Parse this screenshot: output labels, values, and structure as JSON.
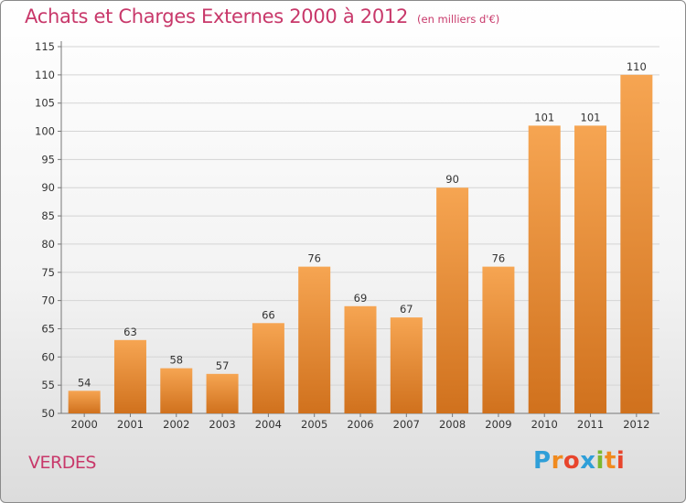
{
  "title": "Achats et Charges Externes 2000 à 2012",
  "subtitle": "(en milliers d'€)",
  "commune": "VERDES",
  "logo": {
    "letters": [
      "P",
      "r",
      "o",
      "x",
      "i",
      "t",
      "i"
    ],
    "colors": [
      "#2f9fd8",
      "#f08a1e",
      "#e8452c",
      "#2f9fd8",
      "#7cb82f",
      "#f08a1e",
      "#e8452c"
    ]
  },
  "colors": {
    "accent": "#c8386a",
    "bar_top": "#f6a552",
    "bar_bottom": "#d0711d"
  },
  "chart_data": {
    "type": "bar",
    "categories": [
      "2000",
      "2001",
      "2002",
      "2003",
      "2004",
      "2005",
      "2006",
      "2007",
      "2008",
      "2009",
      "2010",
      "2011",
      "2012"
    ],
    "values": [
      54,
      63,
      58,
      57,
      66,
      76,
      69,
      67,
      90,
      76,
      101,
      101,
      110
    ],
    "ylim": [
      50,
      115
    ],
    "yticks": [
      50,
      55,
      60,
      65,
      70,
      75,
      80,
      85,
      90,
      95,
      100,
      105,
      110,
      115
    ],
    "grid": true
  }
}
